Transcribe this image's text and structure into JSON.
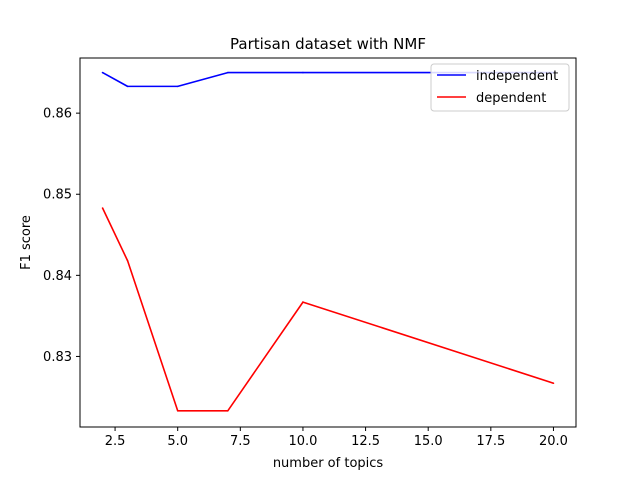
{
  "chart_data": {
    "type": "line",
    "title": "Partisan dataset with NMF",
    "xlabel": "number of topics",
    "ylabel": "F1 score",
    "x": [
      2,
      3,
      5,
      7,
      10,
      20
    ],
    "xlim": [
      1.1,
      20.9
    ],
    "ylim": [
      0.8213,
      0.8668
    ],
    "xticks": [
      2.5,
      5.0,
      7.5,
      10.0,
      12.5,
      15.0,
      17.5,
      20.0
    ],
    "xtick_labels": [
      "2.5",
      "5.0",
      "7.5",
      "10.0",
      "12.5",
      "15.0",
      "17.5",
      "20.0"
    ],
    "yticks": [
      0.83,
      0.84,
      0.85,
      0.86
    ],
    "ytick_labels": [
      "0.83",
      "0.84",
      "0.85",
      "0.86"
    ],
    "grid": false,
    "legend_position": "top-right",
    "series": [
      {
        "name": "independent",
        "color": "#0000ff",
        "values": [
          0.865,
          0.8633,
          0.8633,
          0.865,
          0.865,
          0.865
        ]
      },
      {
        "name": "dependent",
        "color": "#ff0000",
        "values": [
          0.8483,
          0.8418,
          0.8233,
          0.8233,
          0.8367,
          0.8267
        ]
      }
    ]
  }
}
